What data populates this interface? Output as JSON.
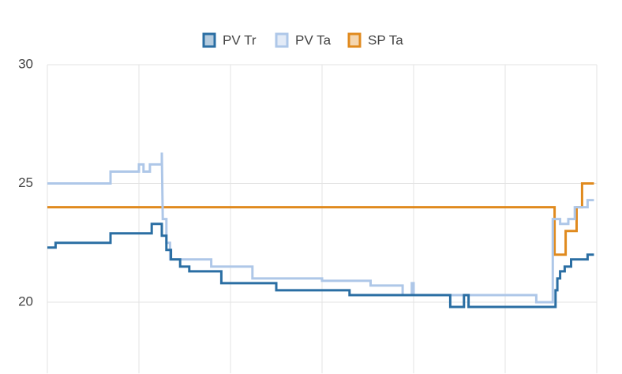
{
  "chart_data": {
    "type": "line",
    "step": true,
    "xlim": [
      0,
      6
    ],
    "xticks": [
      0,
      1,
      2,
      3,
      4,
      5,
      6
    ],
    "ylim": [
      17,
      30
    ],
    "yticks": [
      20,
      25,
      30
    ],
    "grid": true,
    "legend": "top",
    "series": [
      {
        "name": "PV Tr",
        "color": "#2a6ea3",
        "x": [
          0,
          0.09,
          0.09,
          0.69,
          0.69,
          1.14,
          1.14,
          1.25,
          1.25,
          1.3,
          1.3,
          1.35,
          1.35,
          1.45,
          1.45,
          1.55,
          1.55,
          1.9,
          1.9,
          2.5,
          2.5,
          3.3,
          3.3,
          4.4,
          4.4,
          4.55,
          4.55,
          4.6,
          4.6,
          5.55,
          5.55,
          5.57,
          5.57,
          5.6,
          5.6,
          5.65,
          5.65,
          5.72,
          5.72,
          5.9,
          5.9,
          5.97
        ],
        "values": [
          22.3,
          22.3,
          22.5,
          22.5,
          22.9,
          22.9,
          23.3,
          23.3,
          22.8,
          22.8,
          22.2,
          22.2,
          21.8,
          21.8,
          21.5,
          21.5,
          21.3,
          21.3,
          20.8,
          20.8,
          20.5,
          20.5,
          20.3,
          20.3,
          19.8,
          19.8,
          20.3,
          20.3,
          19.8,
          19.8,
          20.5,
          20.5,
          21,
          21,
          21.3,
          21.3,
          21.5,
          21.5,
          21.8,
          21.8,
          22,
          22
        ]
      },
      {
        "name": "PV Ta",
        "color": "#aec7e8",
        "x": [
          0,
          0.69,
          0.69,
          1.0,
          1.0,
          1.05,
          1.05,
          1.12,
          1.12,
          1.25,
          1.25,
          1.26,
          1.3,
          1.3,
          1.34,
          1.34,
          1.79,
          1.79,
          2.24,
          2.24,
          3.0,
          3.0,
          3.53,
          3.53,
          3.88,
          3.88,
          3.98,
          3.98,
          4.0,
          4.0,
          5.34,
          5.34,
          5.52,
          5.52,
          5.6,
          5.6,
          5.69,
          5.69,
          5.76,
          5.76,
          5.9,
          5.9,
          5.97
        ],
        "values": [
          25,
          25,
          25.5,
          25.5,
          25.8,
          25.8,
          25.5,
          25.5,
          25.8,
          25.8,
          26.3,
          23.5,
          23.5,
          22.5,
          22.5,
          21.8,
          21.8,
          21.5,
          21.5,
          21,
          21,
          20.9,
          20.9,
          20.7,
          20.7,
          20.3,
          20.3,
          20.8,
          20.8,
          20.3,
          20.3,
          20,
          20,
          23.5,
          23.5,
          23.3,
          23.3,
          23.5,
          23.5,
          24,
          24,
          24.3,
          24.3
        ]
      },
      {
        "name": "SP Ta",
        "color": "#e08a1e",
        "x": [
          0,
          5.54,
          5.54,
          5.66,
          5.66,
          5.78,
          5.78,
          5.84,
          5.84,
          5.97
        ],
        "values": [
          24,
          24,
          22,
          22,
          23,
          23,
          24,
          24,
          25,
          25
        ]
      }
    ]
  }
}
